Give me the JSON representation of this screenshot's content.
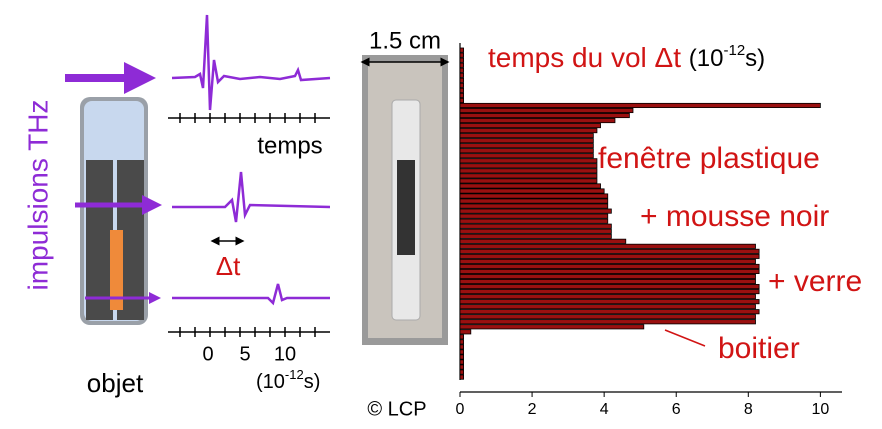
{
  "diagram": {
    "pulse_label": "impulsions THz",
    "time_label": "temps",
    "delta_label": "Δt",
    "time_ticks": [
      "0",
      "5",
      "10"
    ],
    "time_unit": {
      "pre": "(10",
      "sup": "-12",
      "post": "s)"
    },
    "object_label": "objet",
    "scale_label": "1.5 cm",
    "credit": "© LCP"
  },
  "chart_data": {
    "type": "barh",
    "title": {
      "pre": "temps du vol Δt ",
      "unit_pre": "(10",
      "sup": "-12",
      "post": "s)"
    },
    "values": [
      0.1,
      0.1,
      0.1,
      0.1,
      0.1,
      0.1,
      0.1,
      0.1,
      0.1,
      0.1,
      0.1,
      10,
      4.8,
      4.7,
      4.3,
      3.9,
      3.8,
      3.7,
      3.7,
      3.7,
      3.7,
      3.7,
      3.8,
      3.8,
      3.8,
      3.8,
      3.8,
      3.9,
      4.0,
      4.1,
      4.1,
      4.1,
      4.2,
      4.1,
      4.1,
      4.2,
      4.2,
      4.2,
      4.6,
      8.2,
      8.3,
      8.3,
      8.2,
      8.3,
      8.3,
      8.2,
      8.2,
      8.3,
      8.3,
      8.2,
      8.3,
      8.2,
      8.3,
      8.2,
      8.2,
      5.1,
      0.3,
      0.1,
      0.1,
      0.1,
      0.1,
      0.1,
      0.1,
      0.1,
      0.1,
      0.1
    ],
    "color": "#9a1010",
    "xlim": [
      0,
      10.6
    ],
    "xticks": [
      0,
      2,
      4,
      6,
      8,
      10
    ],
    "annotations": [
      "fenêtre plastique",
      "+ mousse noir",
      "+ verre",
      "boitier"
    ]
  }
}
